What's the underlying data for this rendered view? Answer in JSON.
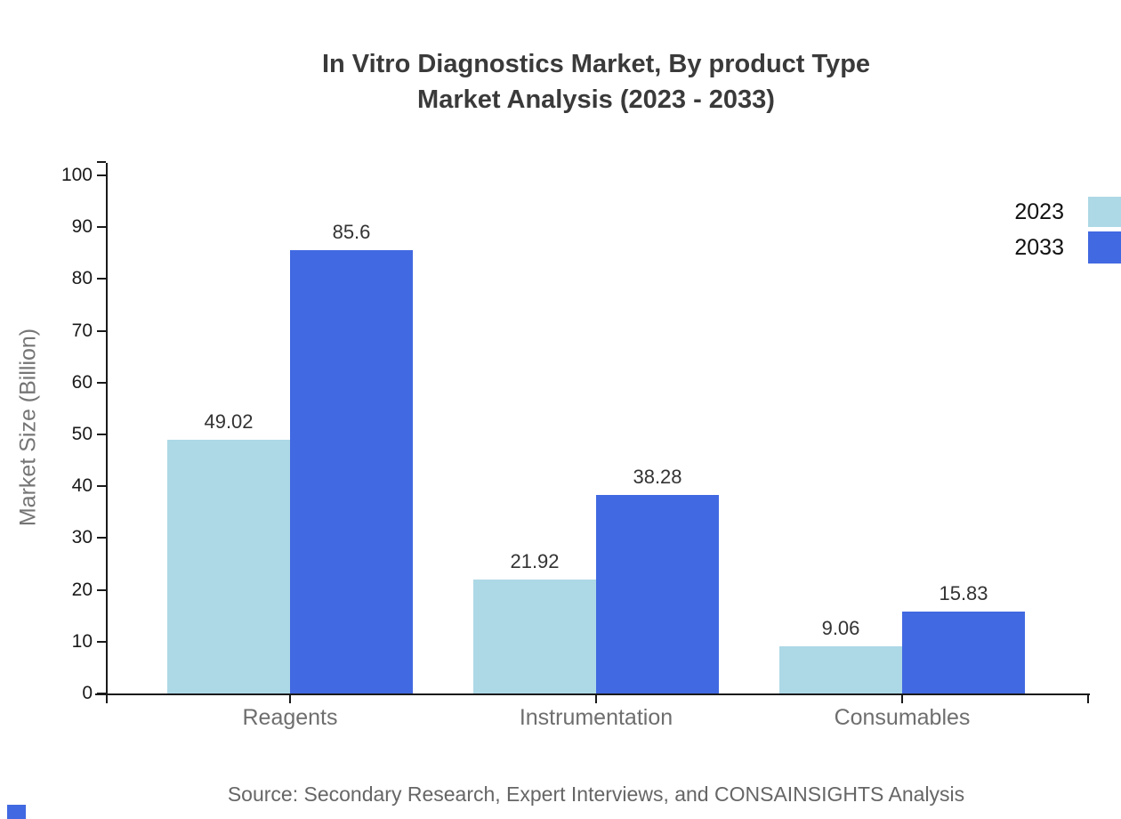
{
  "title": {
    "line1": "In Vitro Diagnostics Market, By product Type",
    "line2": "Market Analysis (2023 - 2033)"
  },
  "source": "Source: Secondary Research, Expert Interviews, and CONSAINSIGHTS Analysis",
  "chart_data": {
    "type": "bar",
    "title": "In Vitro Diagnostics Market, By product Type Market Analysis (2023 - 2033)",
    "categories": [
      "Reagents",
      "Instrumentation",
      "Consumables"
    ],
    "series": [
      {
        "name": "2023",
        "color": "#ADD8E6",
        "values": [
          49.02,
          21.92,
          9.06
        ]
      },
      {
        "name": "2033",
        "color": "#4169E1",
        "values": [
          85.6,
          38.28,
          15.83
        ]
      }
    ],
    "xlabel": "",
    "ylabel": "Market Size (Billion)",
    "ylim": [
      0,
      100
    ],
    "yticks": [
      0,
      10,
      20,
      30,
      40,
      50,
      60,
      70,
      80,
      90,
      100
    ],
    "grid": false,
    "legend_position": "upper-right-outside",
    "value_labels_shown": true
  },
  "colors": {
    "series_2023": "#ADD8E6",
    "series_2033": "#4169E1",
    "axis_line": "#1a1a1a",
    "title_text": "#3a3a3a",
    "muted_text": "#6e6e6e",
    "corner_accent": "#4169E1"
  }
}
